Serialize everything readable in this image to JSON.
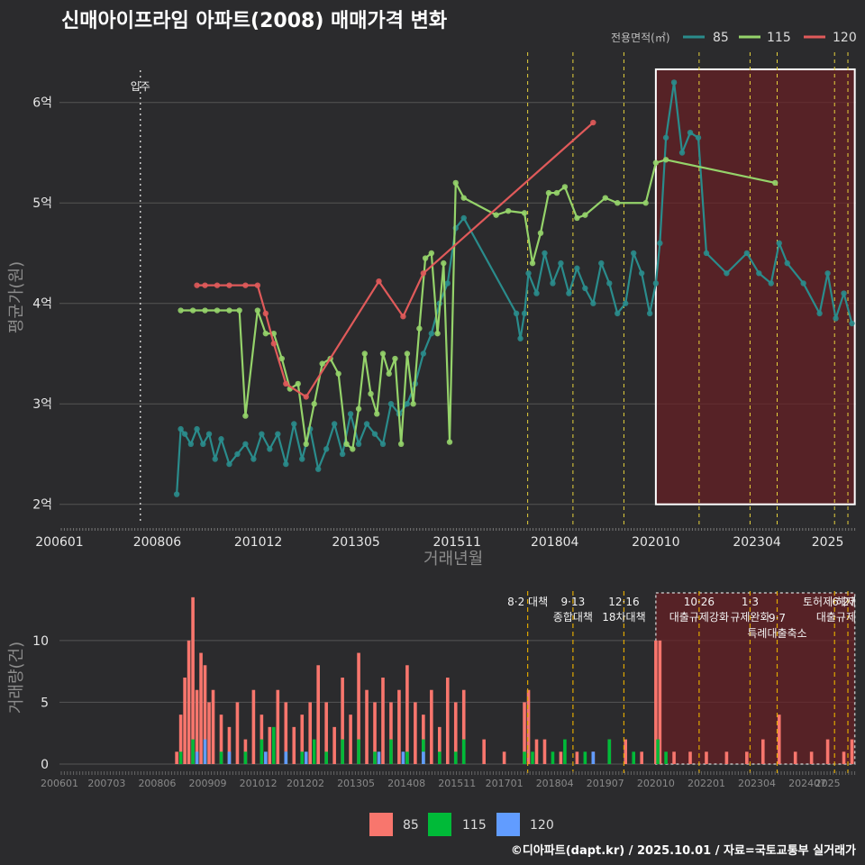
{
  "title": "신매아이프라임 아파트(2008) 매매가격 변화",
  "credit": "©디아파트(dapt.kr) / 2025.10.01 / 자료=국토교통부 실거래가",
  "colors": {
    "s85": "#2a8c8c",
    "s115": "#95d36a",
    "s120": "#e05a5a",
    "bar85": "#f8766d",
    "bar115": "#00ba38",
    "bar120": "#619cff",
    "policy": "#e6d23c",
    "highlight": "#6a1f24"
  },
  "chart_data": [
    {
      "type": "line",
      "title": "신매아이프라임 아파트(2008) 매매가격 변화",
      "xlabel": "거래년월",
      "ylabel": "평균가(원)",
      "legend_title": "전용면적(㎡)",
      "legend_position": "top-right",
      "x_ticks": [
        "200601",
        "200806",
        "201012",
        "201305",
        "201511",
        "201804",
        "202010",
        "202304",
        "2025"
      ],
      "y_ticks": [
        2,
        3,
        4,
        5,
        6
      ],
      "y_tick_labels": [
        "2억",
        "3억",
        "4억",
        "5억",
        "6억"
      ],
      "xlim": [
        2006.0,
        2025.7
      ],
      "ylim": [
        1.8,
        6.5
      ],
      "move_in": {
        "x": 2008.0,
        "label": "입주"
      },
      "highlight_range": [
        2020.75,
        2025.67
      ],
      "policy_lines": [
        2017.58,
        2018.7,
        2019.96,
        2021.82,
        2023.08,
        2023.75,
        2025.17,
        2025.5
      ],
      "series": [
        {
          "name": "85",
          "x": [
            2008.9,
            2009.0,
            2009.1,
            2009.25,
            2009.4,
            2009.55,
            2009.7,
            2009.85,
            2010.0,
            2010.2,
            2010.4,
            2010.6,
            2010.8,
            2011.0,
            2011.2,
            2011.4,
            2011.6,
            2011.8,
            2012.0,
            2012.2,
            2012.4,
            2012.6,
            2012.8,
            2013.0,
            2013.2,
            2013.4,
            2013.6,
            2013.8,
            2014.0,
            2014.2,
            2014.4,
            2014.6,
            2014.8,
            2015.0,
            2015.2,
            2015.4,
            2015.6,
            2015.8,
            2016.0,
            2017.3,
            2017.4,
            2017.5,
            2017.6,
            2017.8,
            2018.0,
            2018.2,
            2018.4,
            2018.6,
            2018.8,
            2019.0,
            2019.2,
            2019.4,
            2019.6,
            2019.8,
            2020.0,
            2020.2,
            2020.4,
            2020.6,
            2020.75,
            2020.85,
            2021.0,
            2021.2,
            2021.4,
            2021.6,
            2021.8,
            2022.0,
            2022.5,
            2023.0,
            2023.3,
            2023.6,
            2023.8,
            2024.0,
            2024.4,
            2024.8,
            2025.0,
            2025.2,
            2025.4,
            2025.6
          ],
          "values": [
            2.1,
            2.75,
            2.7,
            2.6,
            2.75,
            2.6,
            2.7,
            2.45,
            2.65,
            2.4,
            2.5,
            2.6,
            2.45,
            2.7,
            2.55,
            2.7,
            2.4,
            2.8,
            2.45,
            2.75,
            2.35,
            2.55,
            2.8,
            2.5,
            2.9,
            2.6,
            2.8,
            2.7,
            2.6,
            3.0,
            2.9,
            3.0,
            3.2,
            3.5,
            3.7,
            4.0,
            4.2,
            4.75,
            4.85,
            3.9,
            3.65,
            3.9,
            4.3,
            4.1,
            4.5,
            4.2,
            4.4,
            4.1,
            4.35,
            4.15,
            4.0,
            4.4,
            4.2,
            3.9,
            4.0,
            4.5,
            4.3,
            3.9,
            4.2,
            4.6,
            5.65,
            6.2,
            5.5,
            5.7,
            5.65,
            4.5,
            4.3,
            4.5,
            4.3,
            4.2,
            4.6,
            4.4,
            4.2,
            3.9,
            4.3,
            3.85,
            4.1,
            3.8
          ]
        },
        {
          "name": "115",
          "x": [
            2009.0,
            2009.3,
            2009.6,
            2009.9,
            2010.2,
            2010.45,
            2010.6,
            2010.9,
            2011.1,
            2011.3,
            2011.5,
            2011.7,
            2011.9,
            2012.1,
            2012.3,
            2012.5,
            2012.7,
            2012.9,
            2013.1,
            2013.25,
            2013.4,
            2013.55,
            2013.7,
            2013.85,
            2014.0,
            2014.15,
            2014.3,
            2014.45,
            2014.6,
            2014.75,
            2014.9,
            2015.05,
            2015.2,
            2015.35,
            2015.5,
            2015.65,
            2015.8,
            2016.0,
            2016.8,
            2017.1,
            2017.5,
            2017.7,
            2017.9,
            2018.1,
            2018.3,
            2018.5,
            2018.8,
            2019.0,
            2019.5,
            2019.8,
            2020.5,
            2020.75,
            2021.0,
            2023.7
          ],
          "values": [
            3.93,
            3.93,
            3.93,
            3.93,
            3.93,
            3.93,
            2.88,
            3.93,
            3.7,
            3.7,
            3.45,
            3.15,
            3.2,
            2.6,
            3.0,
            3.4,
            3.45,
            3.3,
            2.6,
            2.55,
            2.95,
            3.5,
            3.1,
            2.9,
            3.5,
            3.3,
            3.45,
            2.6,
            3.5,
            3.0,
            3.75,
            4.45,
            4.5,
            3.7,
            4.4,
            2.62,
            5.2,
            5.05,
            4.88,
            4.92,
            4.9,
            4.4,
            4.7,
            5.1,
            5.1,
            5.16,
            4.85,
            4.88,
            5.05,
            5.0,
            5.0,
            5.4,
            5.43,
            5.2
          ]
        },
        {
          "name": "120",
          "x": [
            2009.4,
            2009.6,
            2009.9,
            2010.2,
            2010.6,
            2010.9,
            2011.1,
            2011.3,
            2011.6,
            2012.1,
            2013.9,
            2014.5,
            2015.0,
            2019.2
          ],
          "values": [
            4.18,
            4.18,
            4.18,
            4.18,
            4.18,
            4.18,
            3.9,
            3.6,
            3.2,
            3.07,
            4.22,
            3.87,
            4.3,
            5.8
          ]
        }
      ]
    },
    {
      "type": "bar",
      "ylabel": "거래량(건)",
      "x_ticks": [
        "200601",
        "200703",
        "200806",
        "200909",
        "201012",
        "201202",
        "201305",
        "201408",
        "201511",
        "201701",
        "201804",
        "201907",
        "202010",
        "202201",
        "202304",
        "202407",
        "2025"
      ],
      "y_ticks": [
        0,
        5,
        10
      ],
      "ylim": [
        0,
        14
      ],
      "legend": [
        "85",
        "115",
        "120"
      ],
      "legend_position": "bottom",
      "policy_annotations": [
        {
          "x": 2017.58,
          "label": "8·2 대책"
        },
        {
          "x": 2018.7,
          "label": "9·13"
        },
        {
          "x": 2018.7,
          "label": "종합대책"
        },
        {
          "x": 2019.96,
          "label": "12·16"
        },
        {
          "x": 2019.96,
          "label": "18차대책"
        },
        {
          "x": 2021.82,
          "label": "10·26"
        },
        {
          "x": 2021.82,
          "label": "대출규제강화"
        },
        {
          "x": 2023.08,
          "label": "1·3"
        },
        {
          "x": 2023.08,
          "label": "규제완화"
        },
        {
          "x": 2023.75,
          "label": "9·7"
        },
        {
          "x": 2023.75,
          "label": "특례대출축소"
        },
        {
          "x": 2025.17,
          "label": "토허제 해제"
        },
        {
          "x": 2025.5,
          "label": "6·27"
        },
        {
          "x": 2025.5,
          "label": "대출규제"
        }
      ],
      "series": [
        {
          "name": "85",
          "x": [
            2008.9,
            2009.0,
            2009.1,
            2009.2,
            2009.3,
            2009.4,
            2009.5,
            2009.6,
            2009.7,
            2009.8,
            2010.0,
            2010.2,
            2010.4,
            2010.6,
            2010.8,
            2011.0,
            2011.2,
            2011.4,
            2011.6,
            2011.8,
            2012.0,
            2012.2,
            2012.4,
            2012.6,
            2012.8,
            2013.0,
            2013.2,
            2013.4,
            2013.6,
            2013.8,
            2014.0,
            2014.2,
            2014.4,
            2014.6,
            2014.8,
            2015.0,
            2015.2,
            2015.4,
            2015.6,
            2015.8,
            2016.0,
            2016.5,
            2017.0,
            2017.5,
            2017.6,
            2017.8,
            2018.0,
            2018.4,
            2018.8,
            2019.2,
            2019.6,
            2020.0,
            2020.4,
            2020.75,
            2020.85,
            2021.2,
            2021.6,
            2022.0,
            2022.5,
            2023.0,
            2023.4,
            2023.8,
            2024.2,
            2024.6,
            2025.0,
            2025.4,
            2025.6
          ],
          "values": [
            1,
            4,
            7,
            10,
            13.5,
            6,
            9,
            8,
            5,
            6,
            4,
            3,
            5,
            2,
            6,
            4,
            3,
            6,
            5,
            3,
            4,
            5,
            8,
            5,
            3,
            7,
            4,
            9,
            6,
            5,
            7,
            5,
            6,
            8,
            5,
            4,
            6,
            3,
            7,
            5,
            6,
            2,
            1,
            5,
            6,
            2,
            2,
            1,
            1,
            1,
            2,
            2,
            1,
            10,
            10,
            1,
            1,
            1,
            1,
            1,
            2,
            4,
            1,
            1,
            2,
            1,
            2
          ]
        },
        {
          "name": "115",
          "x": [
            2009.0,
            2009.3,
            2009.6,
            2010.0,
            2010.6,
            2011.0,
            2011.3,
            2011.6,
            2012.0,
            2012.3,
            2012.6,
            2013.0,
            2013.4,
            2013.8,
            2014.2,
            2014.6,
            2015.0,
            2015.4,
            2015.8,
            2016.0,
            2017.5,
            2017.7,
            2018.2,
            2018.5,
            2019.0,
            2019.6,
            2020.2,
            2020.8,
            2021.0
          ],
          "values": [
            1,
            2,
            1,
            1,
            1,
            2,
            3,
            1,
            1,
            2,
            1,
            2,
            2,
            1,
            2,
            1,
            2,
            1,
            1,
            2,
            1,
            1,
            1,
            2,
            1,
            2,
            1,
            2,
            1
          ]
        },
        {
          "name": "120",
          "x": [
            2009.4,
            2009.6,
            2010.2,
            2011.1,
            2011.6,
            2012.1,
            2013.9,
            2014.5,
            2015.0,
            2019.2
          ],
          "values": [
            1,
            2,
            1,
            1,
            1,
            1,
            1,
            1,
            1,
            1
          ]
        }
      ]
    }
  ]
}
